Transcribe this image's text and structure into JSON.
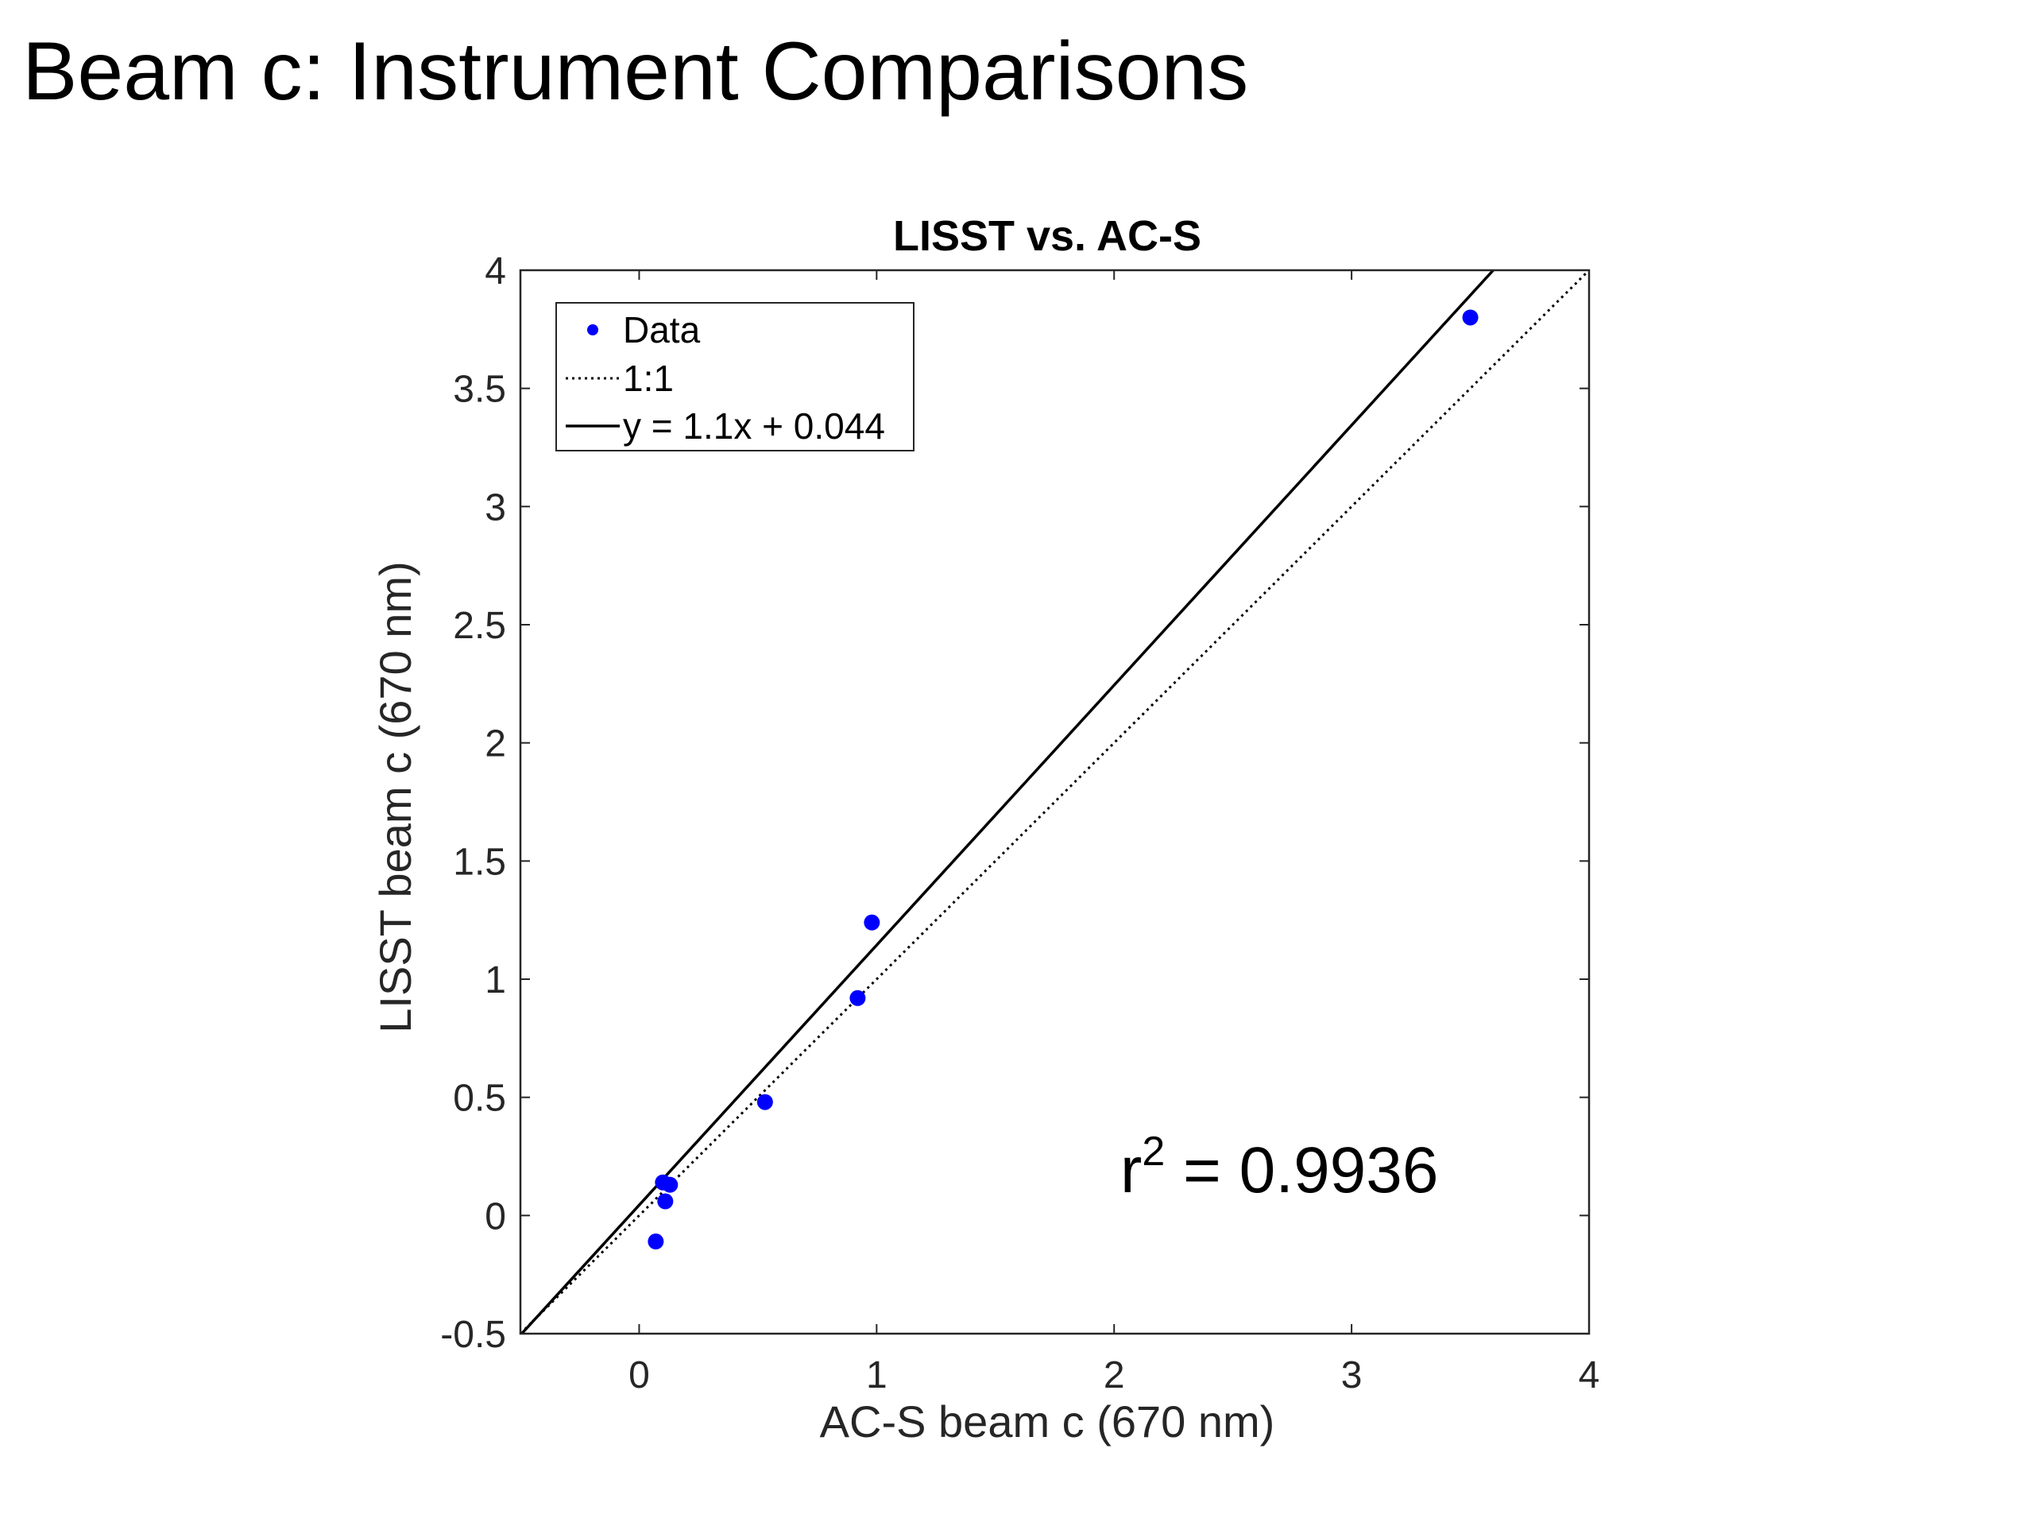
{
  "slide": {
    "title": "Beam c: Instrument Comparisons"
  },
  "chart_data": {
    "type": "scatter",
    "title": "LISST vs. AC-S",
    "xlabel": "AC-S beam c (670 nm)",
    "ylabel": "LISST beam c (670 nm)",
    "xlim": [
      -0.5,
      4
    ],
    "ylim": [
      -0.5,
      4
    ],
    "xticks": [
      0,
      1,
      2,
      3,
      4
    ],
    "xtick_labels": [
      "0",
      "1",
      "2",
      "3",
      "4"
    ],
    "yticks": [
      -0.5,
      0,
      0.5,
      1,
      1.5,
      2,
      2.5,
      3,
      3.5,
      4
    ],
    "ytick_labels": [
      "-0.5",
      "0",
      "0.5",
      "1",
      "1.5",
      "2",
      "2.5",
      "3",
      "3.5",
      "4"
    ],
    "grid": false,
    "legend_position": "top-left",
    "series": [
      {
        "name": "Data",
        "style": "markers",
        "color": "#0000ff",
        "points": [
          {
            "x": 0.07,
            "y": -0.11
          },
          {
            "x": 0.1,
            "y": 0.14
          },
          {
            "x": 0.11,
            "y": 0.06
          },
          {
            "x": 0.13,
            "y": 0.13
          },
          {
            "x": 0.53,
            "y": 0.48
          },
          {
            "x": 0.92,
            "y": 0.92
          },
          {
            "x": 0.98,
            "y": 1.24
          },
          {
            "x": 3.5,
            "y": 3.8
          }
        ]
      },
      {
        "name": "1:1",
        "style": "dotted-line",
        "color": "#000000",
        "slope": 1,
        "intercept": 0
      },
      {
        "name": "y = 1.1x + 0.044",
        "style": "solid-line",
        "color": "#000000",
        "slope": 1.1,
        "intercept": 0.044
      }
    ],
    "annotation": {
      "base": "r",
      "superscript": "2",
      "text": " = 0.9936"
    }
  }
}
